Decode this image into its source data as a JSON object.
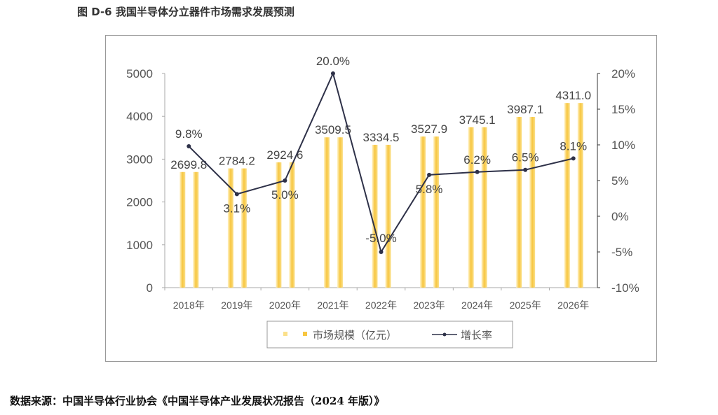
{
  "title": "图 D-6  我国半导体分立器件市场需求发展预测",
  "source": "数据来源：中国半导体行业协会《中国半导体产业发展状况报告（2024 年版）》",
  "chart_data": {
    "type": "bar+line",
    "categories": [
      "2018年",
      "2019年",
      "2020年",
      "2021年",
      "2022年",
      "2023年",
      "2024年",
      "2025年",
      "2026年"
    ],
    "series": [
      {
        "name": "市场规模（亿元）",
        "type": "bar",
        "axis": "left",
        "color": "#f7c640",
        "values": [
          2699.8,
          2784.2,
          2924.6,
          3509.5,
          3334.5,
          3527.9,
          3745.1,
          3987.1,
          4311.0
        ],
        "labels": [
          "2699.8",
          "2784.2",
          "2924.6",
          "3509.5",
          "3334.5",
          "3527.9",
          "3745.1",
          "3987.1",
          "4311.0"
        ]
      },
      {
        "name": "增长率",
        "type": "line",
        "axis": "right",
        "color": "#2e3148",
        "values": [
          9.8,
          3.1,
          5.0,
          20.0,
          -5.0,
          5.8,
          6.2,
          6.5,
          8.1
        ],
        "labels": [
          "9.8%",
          "3.1%",
          "5.0%",
          "20.0%",
          "-5.0%",
          "5.8%",
          "6.2%",
          "6.5%",
          "8.1%"
        ]
      }
    ],
    "y_left": {
      "range": [
        0,
        5000
      ],
      "ticks": [
        "0",
        "1000",
        "2000",
        "3000",
        "4000",
        "5000"
      ]
    },
    "y_right": {
      "range": [
        -10,
        20
      ],
      "ticks": [
        "-10%",
        "-5%",
        "0%",
        "5%",
        "10%",
        "15%",
        "20%"
      ]
    },
    "grid": false,
    "legend": "bottom"
  }
}
